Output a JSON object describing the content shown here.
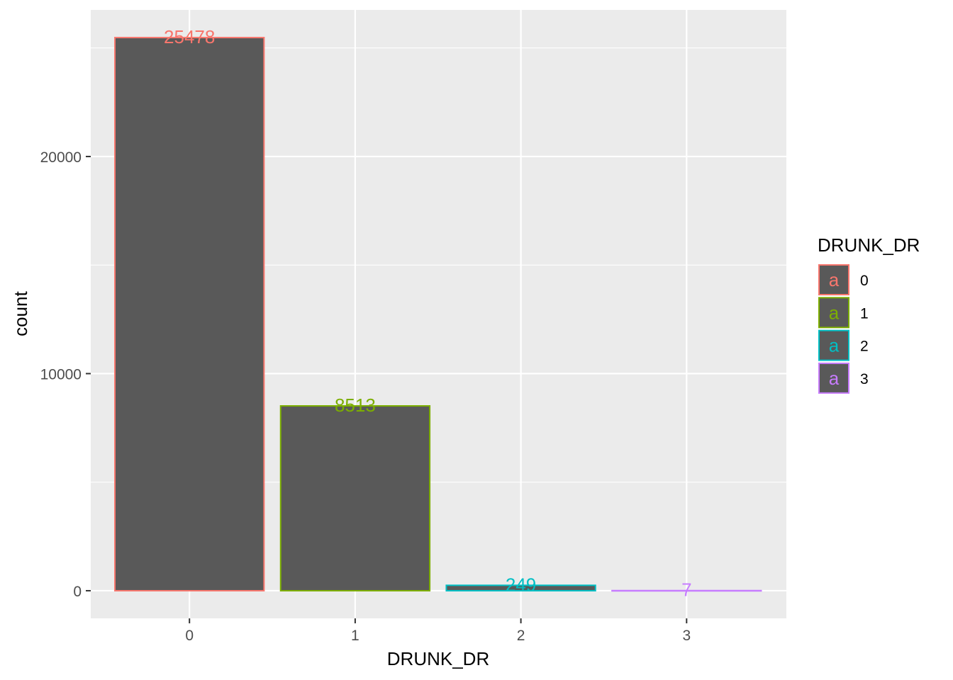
{
  "chart_data": {
    "type": "bar",
    "categories": [
      "0",
      "1",
      "2",
      "3"
    ],
    "values": [
      25478,
      8513,
      249,
      7
    ],
    "data_labels": [
      "25478",
      "8513",
      "249",
      "7"
    ],
    "xlabel": "DRUNK_DR",
    "ylabel": "count",
    "ylim": [
      -1274,
      26752
    ],
    "yticks": [
      0,
      10000,
      20000
    ],
    "ytick_labels": [
      "0",
      "10000",
      "20000"
    ],
    "grid": true,
    "legend": {
      "title": "DRUNK_DR",
      "placement": "right",
      "key_glyph": "a",
      "entries": [
        "0",
        "1",
        "2",
        "3"
      ]
    },
    "colors": {
      "bar_fill": "#595959",
      "series": [
        "#F8766D",
        "#7CAE00",
        "#00BFC4",
        "#C77CFF"
      ],
      "panel_background": "#EBEBEB",
      "grid": "#FFFFFF"
    }
  }
}
